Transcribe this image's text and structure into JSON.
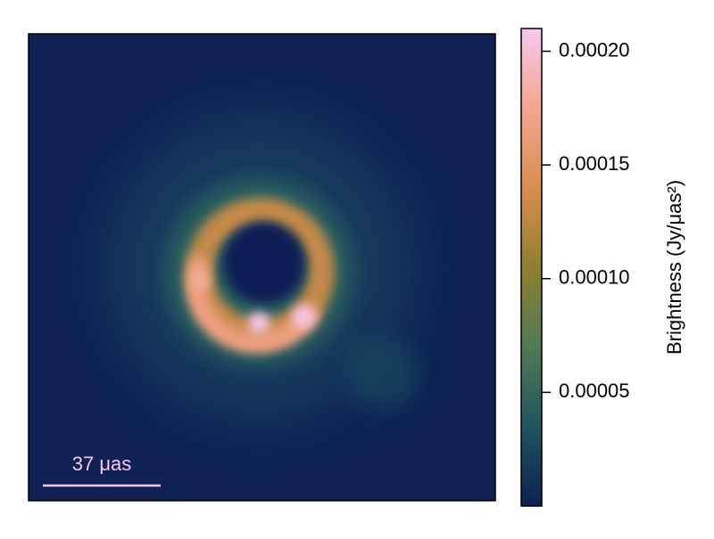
{
  "chart_data": {
    "type": "image",
    "colorbar_label": "Brightness (Jy/μas²)",
    "clim": [
      0,
      0.00021
    ],
    "cticks": [
      {
        "value": 5e-05,
        "label": "0.00005"
      },
      {
        "value": 0.0001,
        "label": "0.00010"
      },
      {
        "value": 0.00015,
        "label": "0.00015"
      },
      {
        "value": 0.0002,
        "label": "0.00020"
      }
    ],
    "colormap": [
      "#0d1f55",
      "#1f5660",
      "#517a55",
      "#8f8030",
      "#d98d50",
      "#f5a590",
      "#f8c8ef"
    ],
    "scale_bar_label": "37 μas"
  }
}
